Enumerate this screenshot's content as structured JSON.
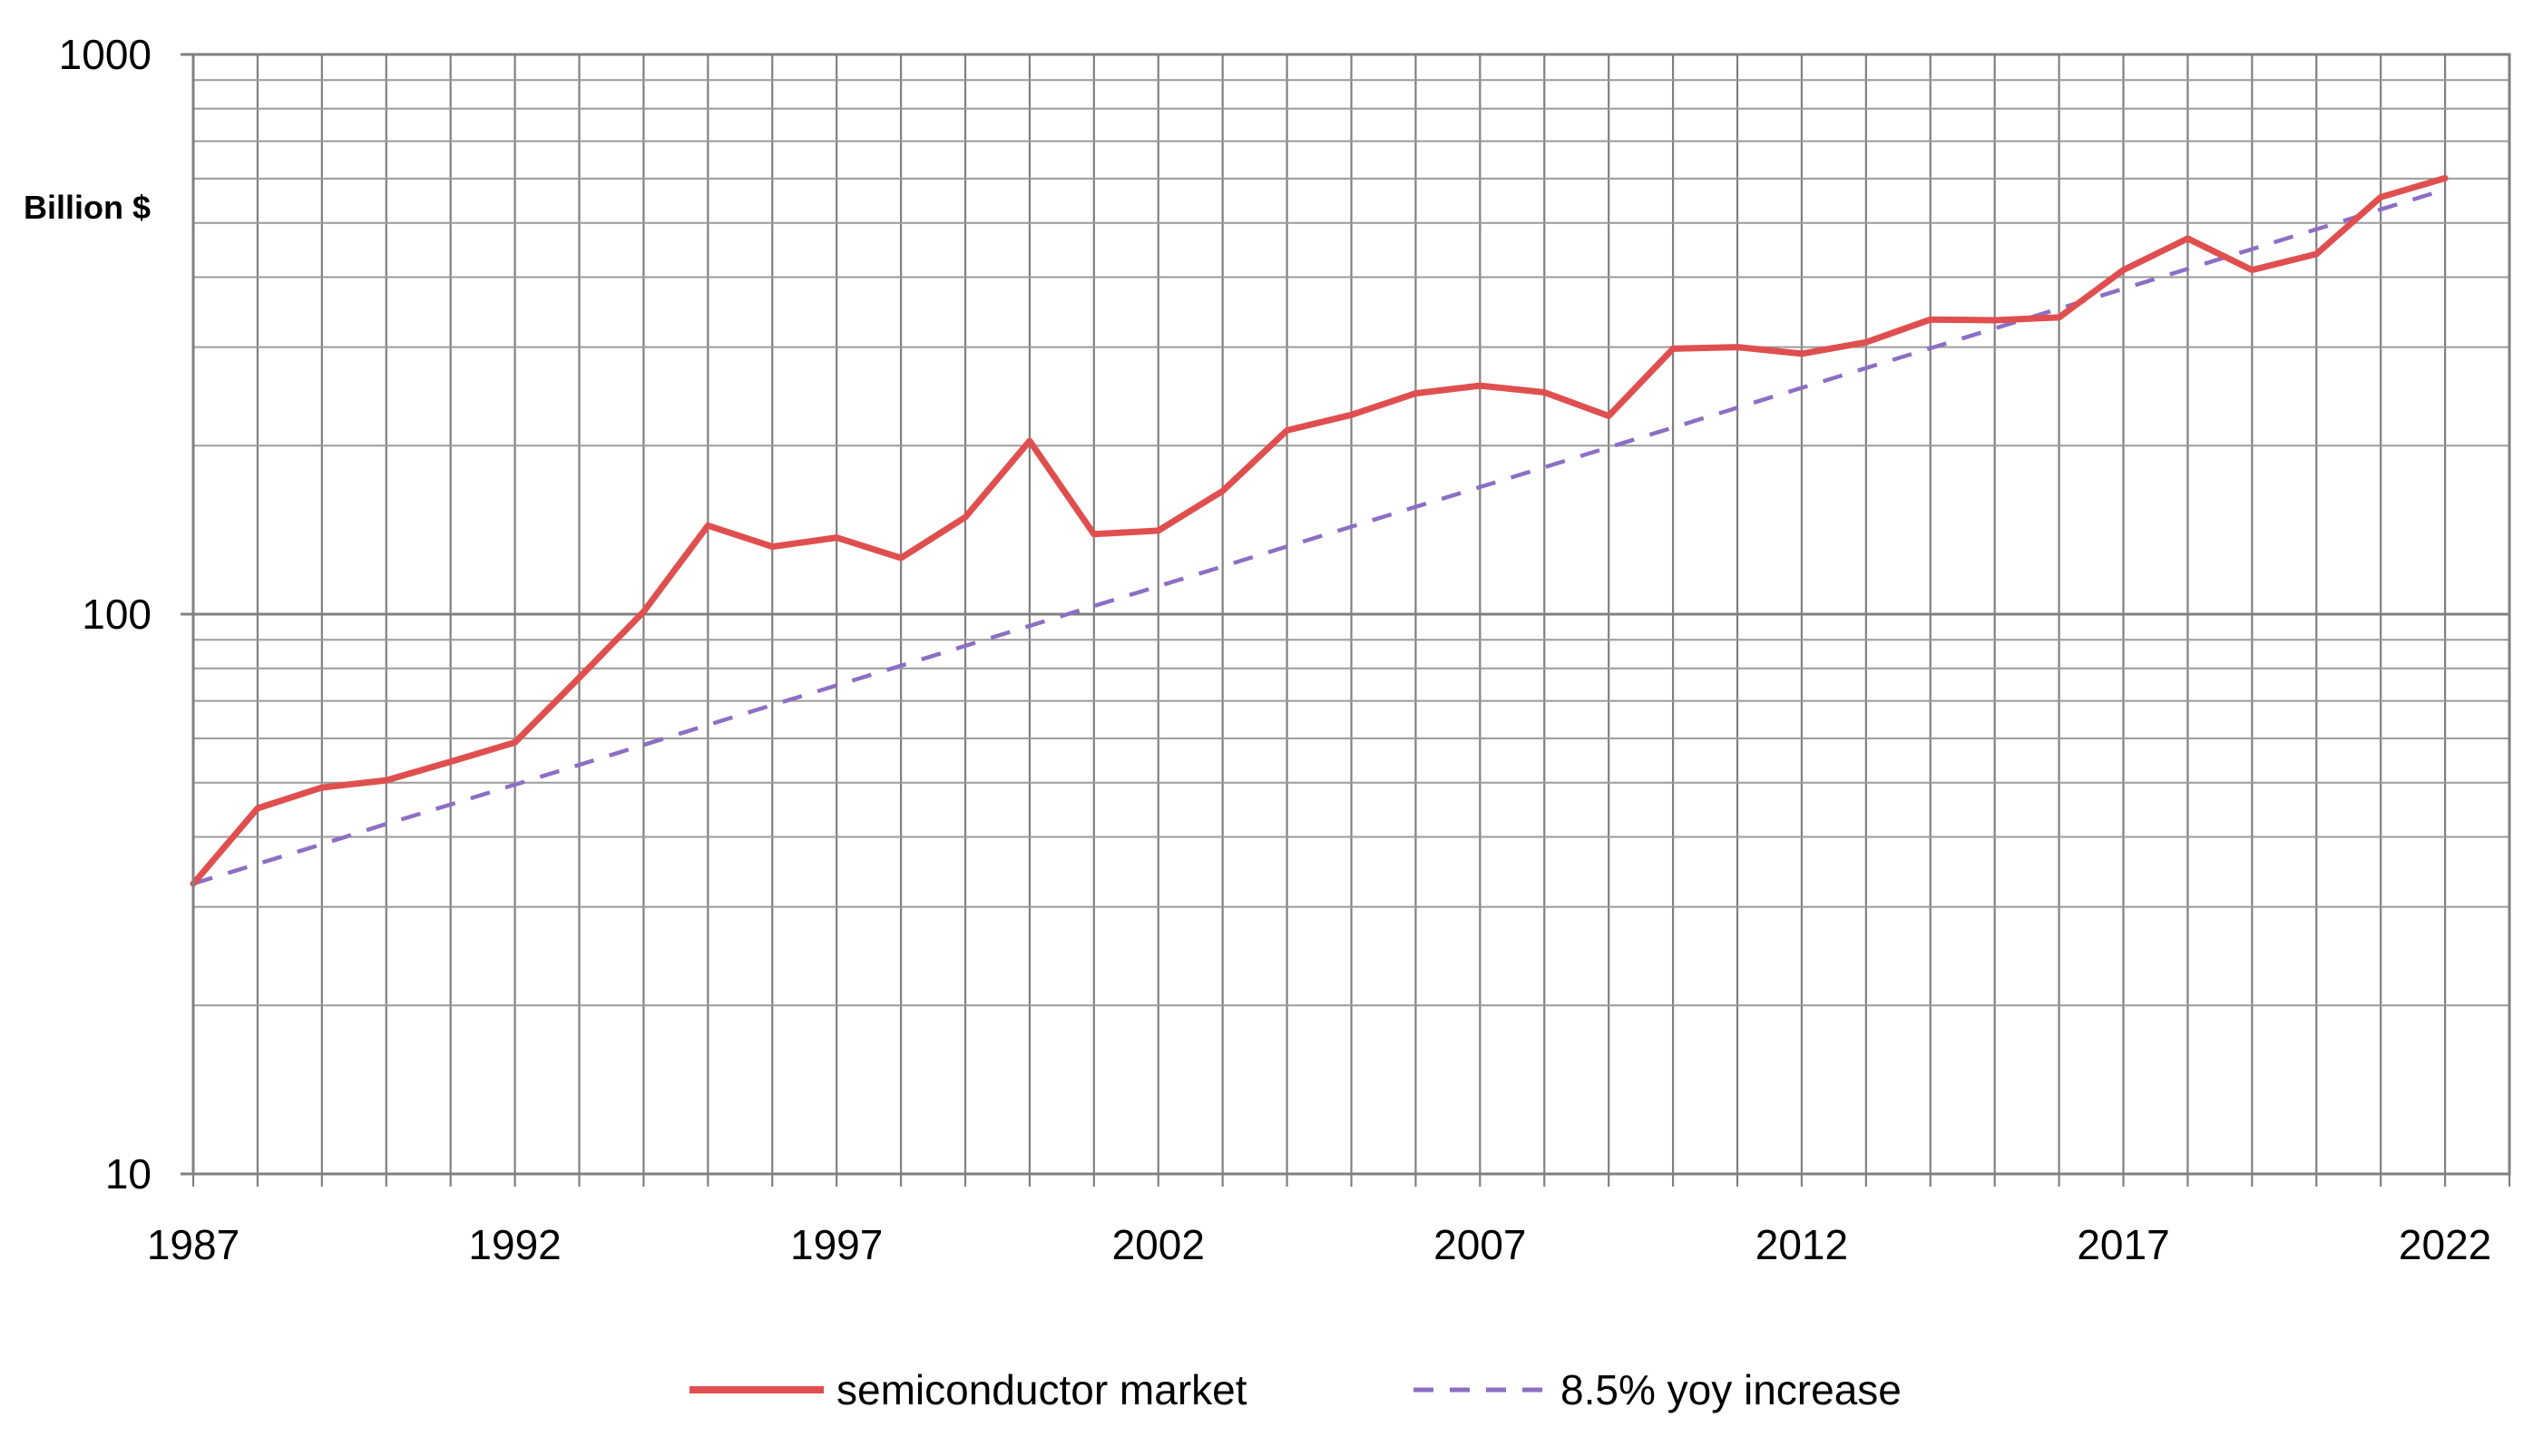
{
  "chart_data": {
    "type": "line",
    "title": "",
    "ylabel": "Billion $",
    "xlabel": "",
    "yscale": "log",
    "ylim": [
      10,
      1000
    ],
    "xlim": [
      1987,
      2023
    ],
    "grid": true,
    "legend_position": "bottom-center",
    "x_tick_labels": [
      "1987",
      "1992",
      "1997",
      "2002",
      "2007",
      "2012",
      "2017",
      "2022"
    ],
    "y_tick_labels": [
      "10",
      "100",
      "1000"
    ],
    "x": [
      1987,
      1988,
      1989,
      1990,
      1991,
      1992,
      1993,
      1994,
      1995,
      1996,
      1997,
      1998,
      1999,
      2000,
      2001,
      2002,
      2003,
      2004,
      2005,
      2006,
      2007,
      2008,
      2009,
      2010,
      2011,
      2012,
      2013,
      2014,
      2015,
      2016,
      2017,
      2018,
      2019,
      2020,
      2021,
      2022
    ],
    "series": [
      {
        "name": "semiconductor market",
        "color": "#e04f4f",
        "style": "solid",
        "values": [
          33,
          45,
          49,
          50.5,
          54.5,
          59,
          77,
          101,
          144,
          132,
          137,
          126,
          149,
          204,
          139,
          141,
          166,
          213,
          227,
          248,
          256,
          249,
          226,
          298,
          300,
          292,
          306,
          336,
          335,
          339,
          412,
          469,
          412,
          440,
          556,
          601
        ]
      },
      {
        "name": "8.5% yoy increase",
        "color": "#8c6fc4",
        "style": "dashed",
        "values": [
          33,
          35.8,
          38.8,
          42.2,
          45.7,
          49.6,
          53.8,
          58.4,
          63.4,
          68.8,
          74.6,
          80.9,
          87.8,
          95.3,
          103.4,
          112.2,
          121.7,
          132.1,
          143.3,
          155.5,
          168.7,
          183.0,
          198.6,
          215.5,
          233.8,
          253.7,
          275.2,
          298.6,
          324.0,
          351.5,
          381.4,
          413.8,
          449.0,
          487.2,
          528.6,
          573.5
        ]
      }
    ]
  }
}
